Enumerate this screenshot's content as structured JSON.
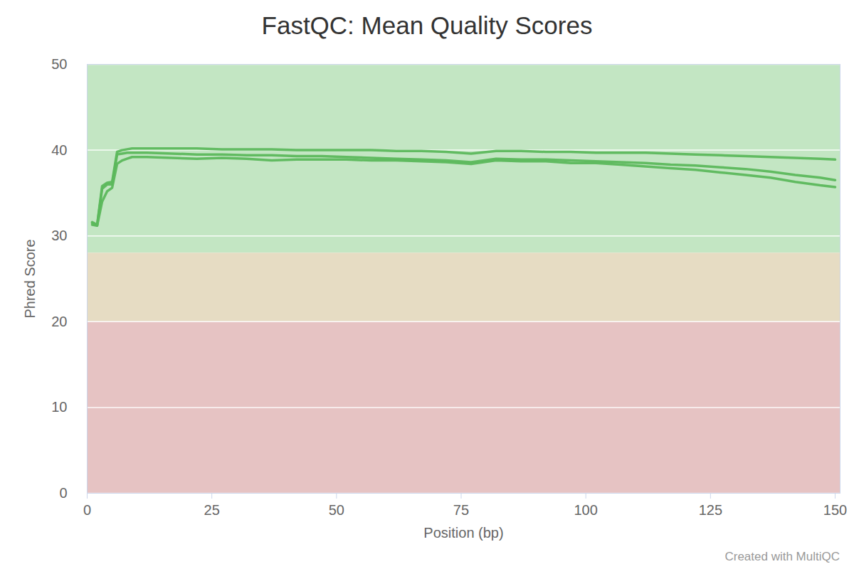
{
  "chart_data": {
    "type": "line",
    "title": "FastQC: Mean Quality Scores",
    "x_label": "Position (bp)",
    "y_label": "Phred Score",
    "caption": "Created with MultiQC",
    "x": [
      1,
      2,
      3,
      4,
      5,
      6,
      7,
      8,
      9,
      12,
      17,
      22,
      27,
      32,
      37,
      42,
      47,
      52,
      57,
      62,
      67,
      72,
      77,
      82,
      87,
      92,
      97,
      102,
      107,
      112,
      117,
      122,
      127,
      132,
      137,
      142,
      147,
      150
    ],
    "series": [
      {
        "color": "#5cb85c",
        "values": [
          31.6,
          31.3,
          35.8,
          36.2,
          36.3,
          39.8,
          40.0,
          40.1,
          40.2,
          40.2,
          40.2,
          40.2,
          40.1,
          40.1,
          40.1,
          40.0,
          40.0,
          40.0,
          40.0,
          39.9,
          39.9,
          39.8,
          39.6,
          39.9,
          39.9,
          39.8,
          39.8,
          39.7,
          39.7,
          39.7,
          39.6,
          39.5,
          39.4,
          39.3,
          39.2,
          39.1,
          39.0,
          38.9
        ]
      },
      {
        "color": "#5cb85c",
        "values": [
          31.5,
          31.2,
          35.5,
          36.0,
          36.0,
          39.5,
          39.6,
          39.7,
          39.7,
          39.7,
          39.6,
          39.5,
          39.5,
          39.4,
          39.4,
          39.3,
          39.3,
          39.2,
          39.1,
          39.0,
          38.9,
          38.8,
          38.6,
          39.0,
          38.9,
          38.9,
          38.8,
          38.7,
          38.6,
          38.5,
          38.3,
          38.2,
          38.0,
          37.8,
          37.5,
          37.1,
          36.8,
          36.5
        ]
      },
      {
        "color": "#5cb85c",
        "values": [
          31.3,
          31.2,
          34.0,
          35.2,
          35.6,
          38.4,
          38.8,
          39.0,
          39.2,
          39.2,
          39.1,
          39.0,
          39.1,
          39.0,
          38.8,
          38.9,
          38.9,
          38.9,
          38.8,
          38.8,
          38.7,
          38.6,
          38.4,
          38.8,
          38.7,
          38.7,
          38.5,
          38.5,
          38.3,
          38.1,
          37.9,
          37.7,
          37.4,
          37.1,
          36.8,
          36.3,
          35.9,
          35.7
        ]
      }
    ],
    "bands": [
      {
        "from": 28,
        "to": 50,
        "color": "#c3e6c3"
      },
      {
        "from": 20,
        "to": 28,
        "color": "#e6dcc3"
      },
      {
        "from": 0,
        "to": 20,
        "color": "#e6c3c3"
      }
    ],
    "xlim": [
      0,
      151
    ],
    "xticks": [
      0,
      25,
      50,
      75,
      100,
      125,
      150
    ],
    "ylim": [
      0,
      50
    ],
    "yticks": [
      0,
      10,
      20,
      30,
      40,
      50
    ],
    "grid": true
  }
}
